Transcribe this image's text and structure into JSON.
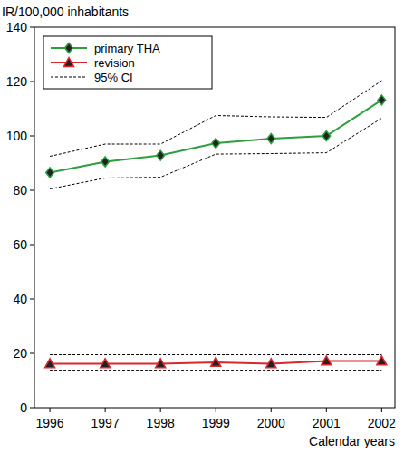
{
  "chart_data": {
    "type": "line",
    "y_label": "IR/100,000 inhabitants",
    "x_label": "Calendar years",
    "x": [
      1996,
      1997,
      1998,
      1999,
      2000,
      2001,
      2002
    ],
    "xlim": [
      1995.72,
      2002.24
    ],
    "xticks": [
      1996,
      1997,
      1998,
      1999,
      2000,
      2001,
      2002
    ],
    "ylim": [
      0,
      140
    ],
    "yticks": [
      0,
      20,
      40,
      60,
      80,
      100,
      120,
      140
    ],
    "interval_label": "95% CI",
    "series": [
      {
        "name": "primary THA",
        "color": "#2e9e3e",
        "marker": "diamond",
        "values": [
          86.5,
          90.5,
          92.8,
          97.3,
          99.0,
          100.0,
          113.2
        ],
        "lower": [
          80.5,
          84.5,
          84.8,
          93.3,
          93.5,
          93.8,
          106.5
        ],
        "upper": [
          92.5,
          97.0,
          97.0,
          107.5,
          107.0,
          106.8,
          120.3
        ]
      },
      {
        "name": "revision",
        "color": "#d9272e",
        "marker": "triangle",
        "values": [
          16.2,
          16.2,
          16.2,
          16.7,
          16.2,
          17.2,
          17.2
        ],
        "lower": [
          13.8,
          13.8,
          13.8,
          13.8,
          13.8,
          13.8,
          13.8
        ],
        "upper": [
          19.5,
          19.5,
          19.5,
          19.5,
          19.5,
          19.5,
          19.5
        ]
      }
    ],
    "legend": "upper left",
    "grid": false
  }
}
